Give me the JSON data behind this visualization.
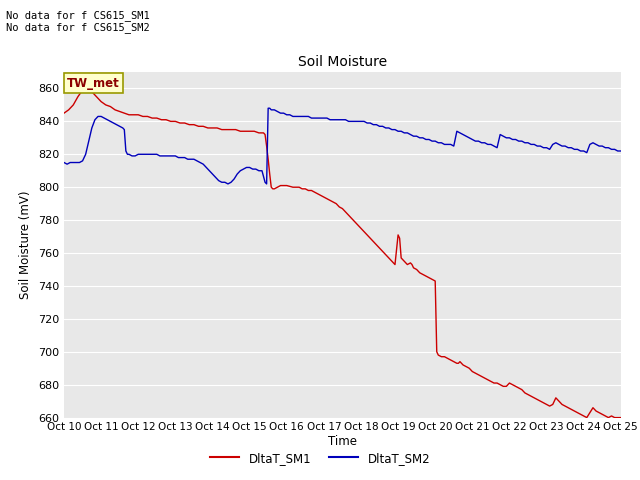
{
  "title": "Soil Moisture",
  "ylabel": "Soil Moisture (mV)",
  "xlabel": "Time",
  "annotation_text": "No data for f CS615_SM1\nNo data for f CS615_SM2",
  "legend_label1": "DltaT_SM1",
  "legend_label2": "DltaT_SM2",
  "annotation_box_text": "TW_met",
  "ylim": [
    660,
    870
  ],
  "yticks": [
    660,
    680,
    700,
    720,
    740,
    760,
    780,
    800,
    820,
    840,
    860
  ],
  "color_sm1": "#CC0000",
  "color_sm2": "#0000BB",
  "bg_color": "#E8E8E8",
  "grid_color": "white",
  "annotation_box_facecolor": "#FFFFCC",
  "annotation_box_edgecolor": "#999900",
  "x_start": 0,
  "x_end": 360,
  "sm1_data": [
    [
      0,
      845
    ],
    [
      3,
      847
    ],
    [
      6,
      850
    ],
    [
      9,
      855
    ],
    [
      12,
      859
    ],
    [
      15,
      860
    ],
    [
      18,
      858
    ],
    [
      21,
      855
    ],
    [
      24,
      852
    ],
    [
      27,
      850
    ],
    [
      30,
      849
    ],
    [
      33,
      847
    ],
    [
      36,
      846
    ],
    [
      39,
      845
    ],
    [
      42,
      844
    ],
    [
      45,
      844
    ],
    [
      48,
      844
    ],
    [
      51,
      843
    ],
    [
      54,
      843
    ],
    [
      57,
      842
    ],
    [
      60,
      842
    ],
    [
      63,
      841
    ],
    [
      66,
      841
    ],
    [
      69,
      840
    ],
    [
      72,
      840
    ],
    [
      75,
      839
    ],
    [
      78,
      839
    ],
    [
      81,
      838
    ],
    [
      84,
      838
    ],
    [
      87,
      837
    ],
    [
      90,
      837
    ],
    [
      93,
      836
    ],
    [
      96,
      836
    ],
    [
      99,
      836
    ],
    [
      102,
      835
    ],
    [
      105,
      835
    ],
    [
      108,
      835
    ],
    [
      111,
      835
    ],
    [
      114,
      834
    ],
    [
      117,
      834
    ],
    [
      120,
      834
    ],
    [
      123,
      834
    ],
    [
      126,
      833
    ],
    [
      129,
      833
    ],
    [
      130,
      832
    ],
    [
      131,
      825
    ],
    [
      132,
      817
    ],
    [
      133,
      808
    ],
    [
      134,
      800
    ],
    [
      135,
      799
    ],
    [
      136,
      799
    ],
    [
      138,
      800
    ],
    [
      140,
      801
    ],
    [
      142,
      801
    ],
    [
      144,
      801
    ],
    [
      148,
      800
    ],
    [
      150,
      800
    ],
    [
      152,
      800
    ],
    [
      154,
      799
    ],
    [
      156,
      799
    ],
    [
      158,
      798
    ],
    [
      160,
      798
    ],
    [
      162,
      797
    ],
    [
      164,
      796
    ],
    [
      166,
      795
    ],
    [
      168,
      794
    ],
    [
      170,
      793
    ],
    [
      172,
      792
    ],
    [
      174,
      791
    ],
    [
      176,
      790
    ],
    [
      178,
      788
    ],
    [
      180,
      787
    ],
    [
      182,
      785
    ],
    [
      184,
      783
    ],
    [
      186,
      781
    ],
    [
      188,
      779
    ],
    [
      190,
      777
    ],
    [
      192,
      775
    ],
    [
      194,
      773
    ],
    [
      196,
      771
    ],
    [
      198,
      769
    ],
    [
      200,
      767
    ],
    [
      202,
      765
    ],
    [
      204,
      763
    ],
    [
      206,
      761
    ],
    [
      208,
      759
    ],
    [
      210,
      757
    ],
    [
      212,
      755
    ],
    [
      214,
      753
    ],
    [
      216,
      771
    ],
    [
      217,
      769
    ],
    [
      218,
      757
    ],
    [
      220,
      755
    ],
    [
      222,
      753
    ],
    [
      224,
      754
    ],
    [
      225,
      753
    ],
    [
      226,
      751
    ],
    [
      228,
      750
    ],
    [
      230,
      748
    ],
    [
      232,
      747
    ],
    [
      234,
      746
    ],
    [
      236,
      745
    ],
    [
      238,
      744
    ],
    [
      240,
      743
    ],
    [
      241,
      700
    ],
    [
      242,
      698
    ],
    [
      244,
      697
    ],
    [
      246,
      697
    ],
    [
      248,
      696
    ],
    [
      250,
      695
    ],
    [
      252,
      694
    ],
    [
      254,
      693
    ],
    [
      255,
      693
    ],
    [
      256,
      694
    ],
    [
      257,
      693
    ],
    [
      258,
      692
    ],
    [
      260,
      691
    ],
    [
      262,
      690
    ],
    [
      264,
      688
    ],
    [
      266,
      687
    ],
    [
      268,
      686
    ],
    [
      270,
      685
    ],
    [
      272,
      684
    ],
    [
      274,
      683
    ],
    [
      276,
      682
    ],
    [
      278,
      681
    ],
    [
      280,
      681
    ],
    [
      282,
      680
    ],
    [
      284,
      679
    ],
    [
      286,
      679
    ],
    [
      288,
      681
    ],
    [
      290,
      680
    ],
    [
      292,
      679
    ],
    [
      294,
      678
    ],
    [
      296,
      677
    ],
    [
      298,
      675
    ],
    [
      300,
      674
    ],
    [
      302,
      673
    ],
    [
      304,
      672
    ],
    [
      306,
      671
    ],
    [
      308,
      670
    ],
    [
      310,
      669
    ],
    [
      312,
      668
    ],
    [
      314,
      667
    ],
    [
      316,
      668
    ],
    [
      318,
      672
    ],
    [
      320,
      670
    ],
    [
      322,
      668
    ],
    [
      324,
      667
    ],
    [
      326,
      666
    ],
    [
      328,
      665
    ],
    [
      330,
      664
    ],
    [
      332,
      663
    ],
    [
      334,
      662
    ],
    [
      336,
      661
    ],
    [
      338,
      660
    ],
    [
      340,
      663
    ],
    [
      342,
      666
    ],
    [
      344,
      664
    ],
    [
      346,
      663
    ],
    [
      348,
      662
    ],
    [
      350,
      661
    ],
    [
      352,
      660
    ],
    [
      354,
      661
    ],
    [
      356,
      660
    ],
    [
      358,
      660
    ],
    [
      360,
      660
    ]
  ],
  "sm2_data": [
    [
      0,
      815
    ],
    [
      2,
      814
    ],
    [
      4,
      815
    ],
    [
      6,
      815
    ],
    [
      8,
      815
    ],
    [
      10,
      815
    ],
    [
      12,
      816
    ],
    [
      14,
      820
    ],
    [
      16,
      828
    ],
    [
      18,
      836
    ],
    [
      20,
      841
    ],
    [
      22,
      843
    ],
    [
      24,
      843
    ],
    [
      26,
      842
    ],
    [
      28,
      841
    ],
    [
      30,
      840
    ],
    [
      32,
      839
    ],
    [
      34,
      838
    ],
    [
      36,
      837
    ],
    [
      38,
      836
    ],
    [
      39,
      835
    ],
    [
      40,
      822
    ],
    [
      41,
      820
    ],
    [
      42,
      820
    ],
    [
      44,
      819
    ],
    [
      46,
      819
    ],
    [
      48,
      820
    ],
    [
      50,
      820
    ],
    [
      52,
      820
    ],
    [
      54,
      820
    ],
    [
      56,
      820
    ],
    [
      58,
      820
    ],
    [
      60,
      820
    ],
    [
      62,
      819
    ],
    [
      64,
      819
    ],
    [
      66,
      819
    ],
    [
      68,
      819
    ],
    [
      70,
      819
    ],
    [
      72,
      819
    ],
    [
      74,
      818
    ],
    [
      76,
      818
    ],
    [
      78,
      818
    ],
    [
      80,
      817
    ],
    [
      82,
      817
    ],
    [
      84,
      817
    ],
    [
      86,
      816
    ],
    [
      88,
      815
    ],
    [
      90,
      814
    ],
    [
      92,
      812
    ],
    [
      94,
      810
    ],
    [
      96,
      808
    ],
    [
      98,
      806
    ],
    [
      100,
      804
    ],
    [
      102,
      803
    ],
    [
      104,
      803
    ],
    [
      106,
      802
    ],
    [
      108,
      803
    ],
    [
      110,
      805
    ],
    [
      112,
      808
    ],
    [
      114,
      810
    ],
    [
      116,
      811
    ],
    [
      118,
      812
    ],
    [
      120,
      812
    ],
    [
      122,
      811
    ],
    [
      124,
      811
    ],
    [
      126,
      810
    ],
    [
      128,
      810
    ],
    [
      130,
      803
    ],
    [
      131,
      802
    ],
    [
      132,
      848
    ],
    [
      133,
      848
    ],
    [
      134,
      847
    ],
    [
      136,
      847
    ],
    [
      138,
      846
    ],
    [
      140,
      845
    ],
    [
      142,
      845
    ],
    [
      144,
      844
    ],
    [
      146,
      844
    ],
    [
      148,
      843
    ],
    [
      150,
      843
    ],
    [
      152,
      843
    ],
    [
      154,
      843
    ],
    [
      156,
      843
    ],
    [
      158,
      843
    ],
    [
      160,
      842
    ],
    [
      162,
      842
    ],
    [
      164,
      842
    ],
    [
      166,
      842
    ],
    [
      168,
      842
    ],
    [
      170,
      842
    ],
    [
      172,
      841
    ],
    [
      174,
      841
    ],
    [
      176,
      841
    ],
    [
      178,
      841
    ],
    [
      180,
      841
    ],
    [
      182,
      841
    ],
    [
      184,
      840
    ],
    [
      186,
      840
    ],
    [
      188,
      840
    ],
    [
      190,
      840
    ],
    [
      192,
      840
    ],
    [
      194,
      840
    ],
    [
      196,
      839
    ],
    [
      198,
      839
    ],
    [
      200,
      838
    ],
    [
      202,
      838
    ],
    [
      204,
      837
    ],
    [
      206,
      837
    ],
    [
      208,
      836
    ],
    [
      210,
      836
    ],
    [
      212,
      835
    ],
    [
      214,
      835
    ],
    [
      216,
      834
    ],
    [
      218,
      834
    ],
    [
      220,
      833
    ],
    [
      222,
      833
    ],
    [
      224,
      832
    ],
    [
      226,
      831
    ],
    [
      228,
      831
    ],
    [
      230,
      830
    ],
    [
      232,
      830
    ],
    [
      234,
      829
    ],
    [
      236,
      829
    ],
    [
      238,
      828
    ],
    [
      240,
      828
    ],
    [
      242,
      827
    ],
    [
      244,
      827
    ],
    [
      246,
      826
    ],
    [
      248,
      826
    ],
    [
      250,
      826
    ],
    [
      252,
      825
    ],
    [
      254,
      834
    ],
    [
      256,
      833
    ],
    [
      258,
      832
    ],
    [
      260,
      831
    ],
    [
      262,
      830
    ],
    [
      264,
      829
    ],
    [
      266,
      828
    ],
    [
      268,
      828
    ],
    [
      270,
      827
    ],
    [
      272,
      827
    ],
    [
      274,
      826
    ],
    [
      276,
      826
    ],
    [
      278,
      825
    ],
    [
      280,
      824
    ],
    [
      282,
      832
    ],
    [
      284,
      831
    ],
    [
      286,
      830
    ],
    [
      288,
      830
    ],
    [
      290,
      829
    ],
    [
      292,
      829
    ],
    [
      294,
      828
    ],
    [
      296,
      828
    ],
    [
      298,
      827
    ],
    [
      300,
      827
    ],
    [
      302,
      826
    ],
    [
      304,
      826
    ],
    [
      306,
      825
    ],
    [
      308,
      825
    ],
    [
      310,
      824
    ],
    [
      312,
      824
    ],
    [
      314,
      823
    ],
    [
      316,
      826
    ],
    [
      318,
      827
    ],
    [
      320,
      826
    ],
    [
      322,
      825
    ],
    [
      324,
      825
    ],
    [
      326,
      824
    ],
    [
      328,
      824
    ],
    [
      330,
      823
    ],
    [
      332,
      823
    ],
    [
      334,
      822
    ],
    [
      336,
      822
    ],
    [
      338,
      821
    ],
    [
      340,
      826
    ],
    [
      342,
      827
    ],
    [
      344,
      826
    ],
    [
      346,
      825
    ],
    [
      348,
      825
    ],
    [
      350,
      824
    ],
    [
      352,
      824
    ],
    [
      354,
      823
    ],
    [
      356,
      823
    ],
    [
      358,
      822
    ],
    [
      360,
      822
    ]
  ],
  "xtick_positions": [
    0,
    24,
    48,
    72,
    96,
    120,
    144,
    168,
    192,
    216,
    240,
    264,
    288,
    312,
    336,
    360
  ],
  "xtick_labels": [
    "Oct 10",
    "Oct 11",
    "Oct 12",
    "Oct 13",
    "Oct 14",
    "Oct 15",
    "Oct 16",
    "Oct 17",
    "Oct 18",
    "Oct 19",
    "Oct 20",
    "Oct 21",
    "Oct 22",
    "Oct 23",
    "Oct 24",
    "Oct 25"
  ]
}
